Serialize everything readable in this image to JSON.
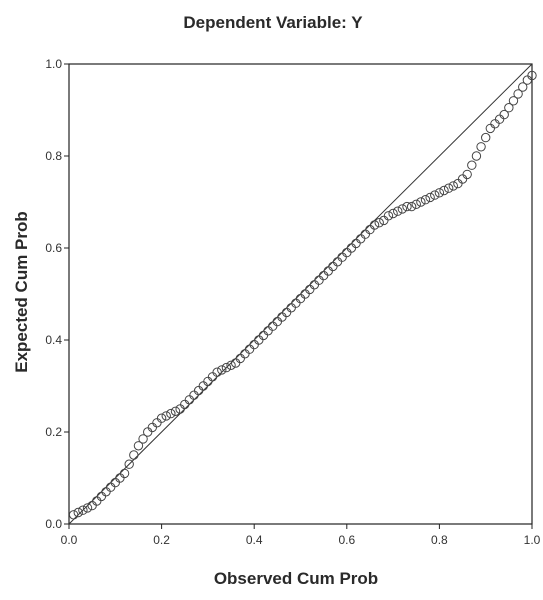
{
  "chart_data": {
    "type": "scatter",
    "title": "Dependent Variable: Y",
    "xlabel": "Observed Cum Prob",
    "ylabel": "Expected Cum Prob",
    "xlim": [
      0.0,
      1.0
    ],
    "ylim": [
      0.0,
      1.0
    ],
    "x_ticks": [
      "0.0",
      "0.2",
      "0.4",
      "0.6",
      "0.8",
      "1.0"
    ],
    "y_ticks": [
      "0.0",
      "0.2",
      "0.4",
      "0.6",
      "0.8",
      "1.0"
    ],
    "grid": false,
    "reference_line": {
      "from": [
        0.0,
        0.0
      ],
      "to": [
        1.0,
        1.0
      ]
    },
    "marker": "open-circle",
    "points": [
      [
        0.01,
        0.02
      ],
      [
        0.02,
        0.025
      ],
      [
        0.03,
        0.03
      ],
      [
        0.04,
        0.035
      ],
      [
        0.05,
        0.04
      ],
      [
        0.06,
        0.05
      ],
      [
        0.07,
        0.06
      ],
      [
        0.08,
        0.07
      ],
      [
        0.09,
        0.08
      ],
      [
        0.1,
        0.09
      ],
      [
        0.11,
        0.1
      ],
      [
        0.12,
        0.11
      ],
      [
        0.13,
        0.13
      ],
      [
        0.14,
        0.15
      ],
      [
        0.15,
        0.17
      ],
      [
        0.16,
        0.185
      ],
      [
        0.17,
        0.2
      ],
      [
        0.18,
        0.21
      ],
      [
        0.19,
        0.22
      ],
      [
        0.2,
        0.23
      ],
      [
        0.21,
        0.235
      ],
      [
        0.22,
        0.24
      ],
      [
        0.23,
        0.245
      ],
      [
        0.24,
        0.25
      ],
      [
        0.25,
        0.26
      ],
      [
        0.26,
        0.27
      ],
      [
        0.27,
        0.28
      ],
      [
        0.28,
        0.29
      ],
      [
        0.29,
        0.3
      ],
      [
        0.3,
        0.31
      ],
      [
        0.31,
        0.32
      ],
      [
        0.32,
        0.33
      ],
      [
        0.33,
        0.335
      ],
      [
        0.34,
        0.34
      ],
      [
        0.35,
        0.345
      ],
      [
        0.36,
        0.35
      ],
      [
        0.37,
        0.36
      ],
      [
        0.38,
        0.37
      ],
      [
        0.39,
        0.38
      ],
      [
        0.4,
        0.39
      ],
      [
        0.41,
        0.4
      ],
      [
        0.42,
        0.41
      ],
      [
        0.43,
        0.42
      ],
      [
        0.44,
        0.43
      ],
      [
        0.45,
        0.44
      ],
      [
        0.46,
        0.45
      ],
      [
        0.47,
        0.46
      ],
      [
        0.48,
        0.47
      ],
      [
        0.49,
        0.48
      ],
      [
        0.5,
        0.49
      ],
      [
        0.51,
        0.5
      ],
      [
        0.52,
        0.51
      ],
      [
        0.53,
        0.52
      ],
      [
        0.54,
        0.53
      ],
      [
        0.55,
        0.54
      ],
      [
        0.56,
        0.55
      ],
      [
        0.57,
        0.56
      ],
      [
        0.58,
        0.57
      ],
      [
        0.59,
        0.58
      ],
      [
        0.6,
        0.59
      ],
      [
        0.61,
        0.6
      ],
      [
        0.62,
        0.61
      ],
      [
        0.63,
        0.62
      ],
      [
        0.64,
        0.63
      ],
      [
        0.65,
        0.64
      ],
      [
        0.66,
        0.65
      ],
      [
        0.67,
        0.655
      ],
      [
        0.68,
        0.66
      ],
      [
        0.69,
        0.67
      ],
      [
        0.7,
        0.675
      ],
      [
        0.71,
        0.68
      ],
      [
        0.72,
        0.685
      ],
      [
        0.73,
        0.69
      ],
      [
        0.74,
        0.69
      ],
      [
        0.75,
        0.695
      ],
      [
        0.76,
        0.7
      ],
      [
        0.77,
        0.705
      ],
      [
        0.78,
        0.71
      ],
      [
        0.79,
        0.715
      ],
      [
        0.8,
        0.72
      ],
      [
        0.81,
        0.725
      ],
      [
        0.82,
        0.73
      ],
      [
        0.83,
        0.735
      ],
      [
        0.84,
        0.74
      ],
      [
        0.85,
        0.75
      ],
      [
        0.86,
        0.76
      ],
      [
        0.87,
        0.78
      ],
      [
        0.88,
        0.8
      ],
      [
        0.89,
        0.82
      ],
      [
        0.9,
        0.84
      ],
      [
        0.91,
        0.86
      ],
      [
        0.92,
        0.87
      ],
      [
        0.93,
        0.88
      ],
      [
        0.94,
        0.89
      ],
      [
        0.95,
        0.905
      ],
      [
        0.96,
        0.92
      ],
      [
        0.97,
        0.935
      ],
      [
        0.98,
        0.95
      ],
      [
        0.99,
        0.965
      ],
      [
        1.0,
        0.975
      ]
    ]
  }
}
